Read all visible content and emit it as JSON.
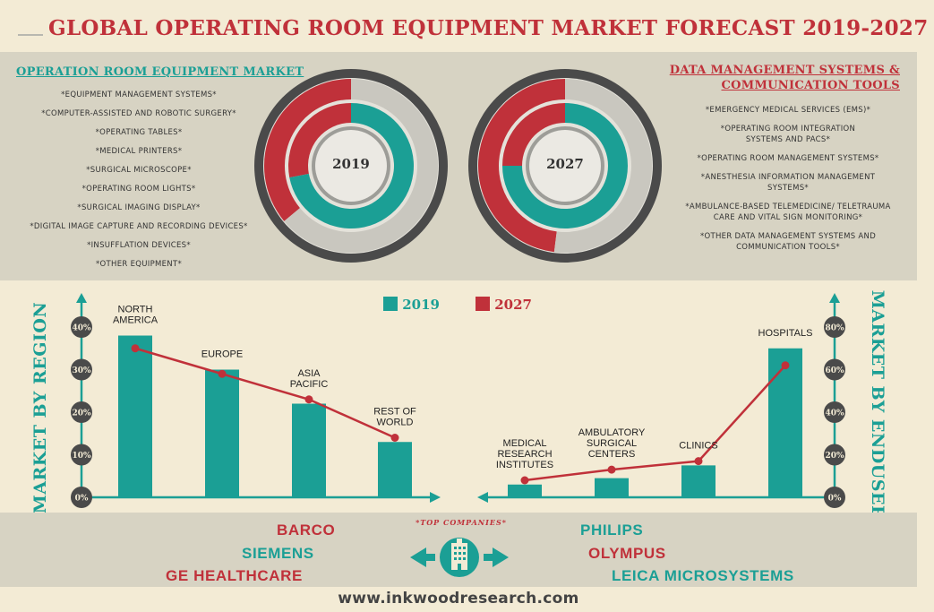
{
  "title": "GLOBAL OPERATING ROOM EQUIPMENT MARKET FORECAST 2019-2027",
  "colors": {
    "teal": "#1b9f95",
    "red": "#c0313a",
    "grey": "#d7d3c3",
    "cream": "#f3ebd5",
    "dark": "#4a4a4a"
  },
  "left_section": {
    "heading": "OPERATION ROOM EQUIPMENT MARKET",
    "items": [
      "*EQUIPMENT MANAGEMENT SYSTEMS*",
      "*COMPUTER-ASSISTED AND ROBOTIC SURGERY*",
      "*OPERATING TABLES*",
      "*MEDICAL PRINTERS*",
      "*SURGICAL MICROSCOPE*",
      "*OPERATING ROOM LIGHTS*",
      "*SURGICAL IMAGING DISPLAY*",
      "*DIGITAL IMAGE CAPTURE AND RECORDING DEVICES*",
      "*INSUFFLATION DEVICES*",
      "*OTHER EQUIPMENT*"
    ]
  },
  "right_section": {
    "heading_line1": "DATA MANAGEMENT SYSTEMS &",
    "heading_line2": "COMMUNICATION TOOLS",
    "items": [
      "*EMERGENCY MEDICAL SERVICES (EMS)*",
      "*OPERATING ROOM INTEGRATION SYSTEMS AND PACS*",
      "*OPERATING ROOM MANAGEMENT SYSTEMS*",
      "*ANESTHESIA INFORMATION MANAGEMENT SYSTEMS*",
      "*AMBULANCE-BASED TELEMEDICINE/ TELETRAUMA CARE AND VITAL SIGN MONITORING*",
      "*OTHER DATA MANAGEMENT SYSTEMS AND COMMUNICATION TOOLS*"
    ]
  },
  "legend": {
    "label_2019": "2019",
    "label_2027": "2027"
  },
  "region_axis_label": "MARKET BY REGION",
  "enduser_axis_label": "MARKET BY ENDUSER",
  "companies_label": "*TOP COMPANIES*",
  "companies": {
    "barco": "BARCO",
    "siemens": "SIEMENS",
    "ge": "GE HEALTHCARE",
    "philips": "PHILIPS",
    "olympus": "OLYMPUS",
    "leica": "LEICA MICROSYSTEMS"
  },
  "website": "www.inkwoodresearch.com",
  "chart_data": [
    {
      "type": "pie",
      "title": "2019",
      "series": [
        {
          "name": "Operation Room Equipment Market",
          "ring": "inner",
          "values": [
            {
              "label": "Operation Room Equipment Market",
              "value": 72
            },
            {
              "label": "Data Management Systems & Communication Tools",
              "value": 28
            }
          ]
        },
        {
          "name": "Data Management Systems & Communication Tools",
          "ring": "outer",
          "values": [
            {
              "label": "Operation Room Equipment Market",
              "value": 64
            },
            {
              "label": "Data Management Systems & Communication Tools",
              "value": 36
            }
          ]
        }
      ]
    },
    {
      "type": "pie",
      "title": "2027",
      "series": [
        {
          "name": "Operation Room Equipment Market",
          "ring": "inner",
          "values": [
            {
              "label": "Operation Room Equipment Market",
              "value": 75
            },
            {
              "label": "Data Management Systems & Communication Tools",
              "value": 25
            }
          ]
        },
        {
          "name": "Data Management Systems & Communication Tools",
          "ring": "outer",
          "values": [
            {
              "label": "Operation Room Equipment Market",
              "value": 52
            },
            {
              "label": "Data Management Systems & Communication Tools",
              "value": 48
            }
          ]
        }
      ]
    },
    {
      "type": "bar",
      "title": "MARKET BY REGION",
      "categories": [
        [
          "NORTH",
          "AMERICA"
        ],
        [
          "EUROPE"
        ],
        [
          "ASIA",
          "PACIFIC"
        ],
        [
          "REST OF",
          "WORLD"
        ]
      ],
      "series": [
        {
          "name": "2019",
          "type": "bar",
          "values": [
            38,
            30,
            22,
            13
          ]
        },
        {
          "name": "2027",
          "type": "line",
          "values": [
            35,
            29,
            23,
            14
          ]
        }
      ],
      "yticks": [
        "0%",
        "10%",
        "20%",
        "30%",
        "40%"
      ],
      "ylim": [
        0,
        40
      ]
    },
    {
      "type": "bar",
      "title": "MARKET BY ENDUSER",
      "categories": [
        [
          "MEDICAL",
          "RESEARCH",
          "INSTITUTES"
        ],
        [
          "AMBULATORY",
          "SURGICAL",
          "CENTERS"
        ],
        [
          "CLINICS"
        ],
        [
          "HOSPITALS"
        ]
      ],
      "series": [
        {
          "name": "2019",
          "type": "bar",
          "values": [
            6,
            9,
            15,
            70
          ]
        },
        {
          "name": "2027",
          "type": "line",
          "values": [
            8,
            13,
            17,
            62
          ]
        }
      ],
      "yticks": [
        "0%",
        "20%",
        "40%",
        "60%",
        "80%"
      ],
      "ylim": [
        0,
        80
      ]
    }
  ]
}
